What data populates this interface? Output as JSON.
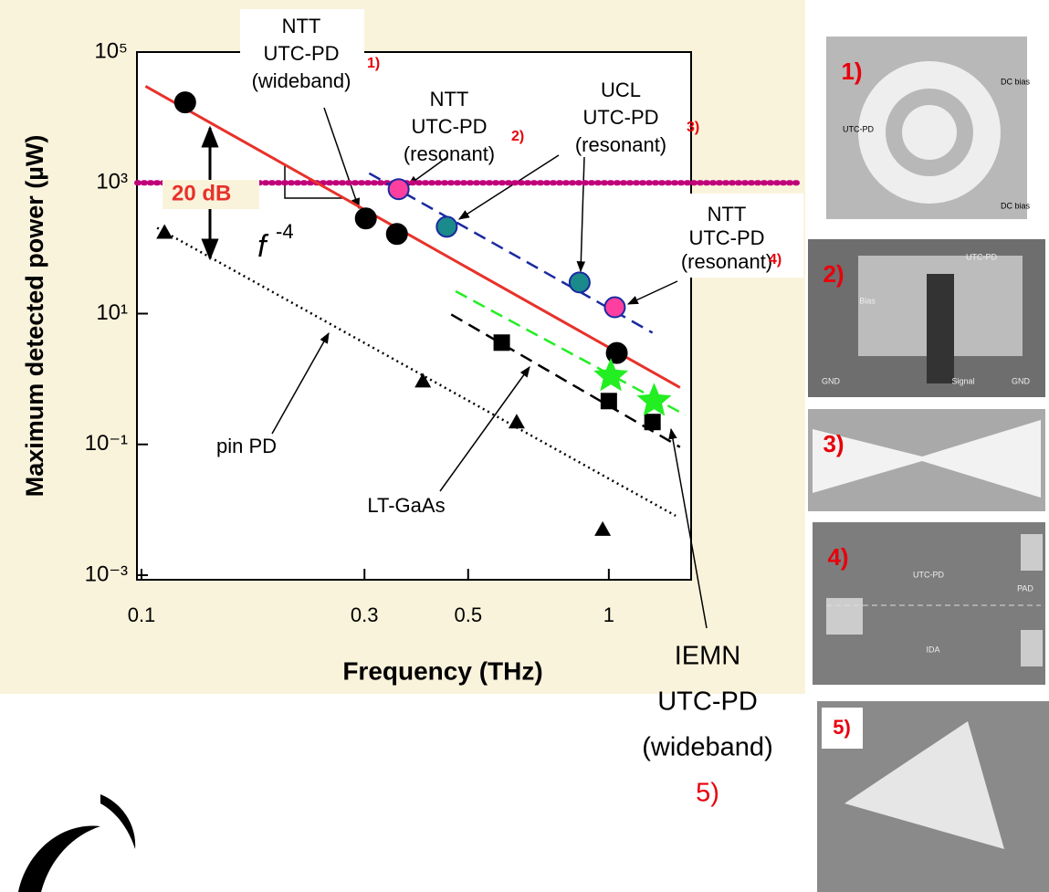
{
  "chart_data": {
    "type": "scatter",
    "x_label": "Frequency (THz)",
    "y_label": "Maximum detected power (µW)",
    "log_x": true,
    "log_y": true,
    "xlim": [
      0.1,
      1.5
    ],
    "xticks": [
      0.1,
      0.3,
      0.5,
      1
    ],
    "ylim": [
      0.001,
      100000
    ],
    "yticks": [
      {
        "value": 100000,
        "label": "10⁵"
      },
      {
        "value": 1000,
        "label": "10³"
      },
      {
        "value": 10,
        "label": "10¹"
      },
      {
        "value": 0.1,
        "label": "10⁻¹"
      },
      {
        "value": 0.001,
        "label": "10⁻³"
      }
    ],
    "series": [
      {
        "marker": "circle",
        "color": "#000000",
        "x": [
          0.124,
          0.302,
          0.352,
          1.04
        ],
        "values": [
          17000,
          285,
          165,
          2.5
        ]
      },
      {
        "marker": "circle",
        "color": "#ff3fa0",
        "x": [
          0.355,
          1.03
        ],
        "values": [
          800,
          12.5
        ]
      },
      {
        "marker": "circle",
        "color": "#1a8a8a",
        "x": [
          0.45,
          0.866
        ],
        "values": [
          213,
          30
        ]
      },
      {
        "marker": "square",
        "color": "#000000",
        "x": [
          0.59,
          1.0,
          1.24
        ],
        "values": [
          3.6,
          0.46,
          0.22
        ]
      },
      {
        "marker": "triangle",
        "color": "#000000",
        "x": [
          0.112,
          0.4,
          0.635,
          0.97
        ],
        "values": [
          175,
          0.93,
          0.22,
          0.005
        ]
      },
      {
        "marker": "star",
        "color": "#22ee22",
        "x": [
          1.01,
          1.25
        ],
        "values": [
          1.1,
          0.46
        ]
      }
    ],
    "lines": [
      {
        "style": "solid",
        "color": "#e8312a",
        "x": [
          0.102,
          1.42
        ],
        "values": [
          30000,
          0.74
        ]
      },
      {
        "style": "dashed",
        "color": "#1a2aa0",
        "x": [
          0.307,
          1.24
        ],
        "values": [
          1400,
          5.1
        ]
      },
      {
        "style": "dotted",
        "color": "#000000",
        "x": [
          0.108,
          1.39
        ],
        "values": [
          205,
          0.0081
        ]
      },
      {
        "style": "dashed",
        "color": "#000000",
        "x": [
          0.46,
          1.42
        ],
        "values": [
          9.7,
          0.091
        ]
      },
      {
        "style": "dashed",
        "color": "#22ee22",
        "x": [
          0.47,
          1.46
        ],
        "values": [
          22,
          0.28
        ]
      }
    ],
    "reference_level": {
      "value": 1000,
      "color": "#c0007a"
    },
    "ratio_label": "20 dB",
    "slope_label": {
      "base": "f",
      "exponent": "-4"
    },
    "annotations": [
      {
        "lines": [
          "NTT",
          "UTC-PD",
          "(wideband)"
        ],
        "ref": "1)"
      },
      {
        "lines": [
          "NTT",
          "UTC-PD",
          "(resonant)"
        ],
        "ref": "2)"
      },
      {
        "lines": [
          "UCL",
          "UTC-PD",
          "(resonant)"
        ],
        "ref": "3)"
      },
      {
        "lines": [
          "NTT",
          "UTC-PD",
          "(resonant)"
        ],
        "ref": "4)"
      },
      {
        "lines": [
          "pin PD"
        ]
      },
      {
        "lines": [
          "LT-GaAs"
        ]
      },
      {
        "lines": [
          "IEMN",
          "UTC-PD",
          "(wideband)"
        ],
        "ref": "5)"
      }
    ]
  },
  "photos": [
    {
      "label": "1)",
      "texts": [
        "UTC-PD",
        "DC bias",
        "DC bias"
      ]
    },
    {
      "label": "2)",
      "texts": [
        "UTC-PD",
        "Bias",
        "GND",
        "Signal",
        "GND"
      ]
    },
    {
      "label": "3)",
      "texts": []
    },
    {
      "label": "4)",
      "texts": [
        "UTC-PD",
        "PAD",
        "IDA"
      ]
    },
    {
      "label": "5)",
      "texts": []
    }
  ]
}
